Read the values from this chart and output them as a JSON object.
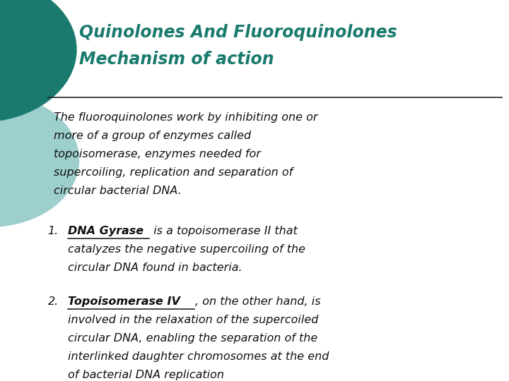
{
  "title_line1": "Quinolones And Fluoroquinolones",
  "title_line2": "Mechanism of action",
  "title_color": "#1a7a6e",
  "bg_color": "#ffffff",
  "separator_color": "#222222",
  "body_text_color": "#111111",
  "intro_text": "The fluoroquinolones work by inhibiting one or\nmore of a group of enzymes called\ntopoisomerase, enzymes needed for\nsupercoiling, replication and separation of\ncircular bacterial DNA.",
  "item1_bold": "DNA Gyrase",
  "item1_rest_inline": " is a topoisomerase II that",
  "item1_rest_lines": [
    "catalyzes the negative supercoiling of the",
    "circular DNA found in bacteria."
  ],
  "item2_bold": "Topoisomerase IV",
  "item2_rest_inline": ", on the other hand, is",
  "item2_rest_lines": [
    "involved in the relaxation of the supercoiled",
    "circular DNA, enabling the separation of the",
    "interlinked daughter chromosomes at the end",
    "of bacterial DNA replication"
  ],
  "decoration_dark": "#1a7a6e",
  "decoration_light": "#9dcfcc",
  "title_fontsize": 17,
  "body_fontsize": 11.5
}
